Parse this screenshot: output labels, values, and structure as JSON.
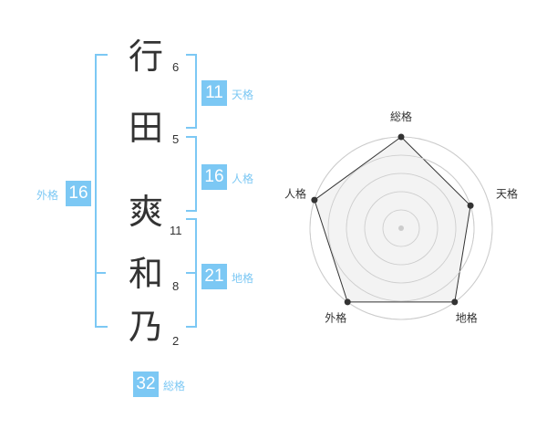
{
  "characters": [
    {
      "char": "行",
      "strokes": "6"
    },
    {
      "char": "田",
      "strokes": "5"
    },
    {
      "char": "爽",
      "strokes": "11"
    },
    {
      "char": "和",
      "strokes": "8"
    },
    {
      "char": "乃",
      "strokes": "2"
    }
  ],
  "fortunes": {
    "tenkaku": {
      "label": "天格",
      "value": "11"
    },
    "jinkaku": {
      "label": "人格",
      "value": "16"
    },
    "chikaku": {
      "label": "地格",
      "value": "21"
    },
    "gaikaku": {
      "label": "外格",
      "value": "16"
    },
    "soukaku": {
      "label": "総格",
      "value": "32"
    }
  },
  "chart_data": {
    "type": "radar",
    "categories": [
      "総格",
      "天格",
      "地格",
      "外格",
      "人格"
    ],
    "values": [
      5,
      4,
      5,
      5,
      5
    ],
    "rlim": [
      0,
      5
    ],
    "grid": true,
    "colors": {
      "fill": "#f0f0f0",
      "line": "#333333",
      "grid": "#cccccc",
      "accent": "#7cc8f4"
    }
  }
}
